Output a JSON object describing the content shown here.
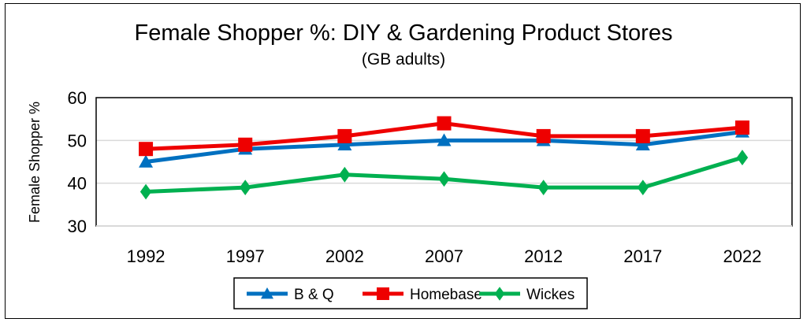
{
  "chart_data": {
    "type": "line",
    "title": "Female Shopper %: DIY & Gardening Product Stores",
    "subtitle": "(GB adults)",
    "xlabel": "",
    "ylabel": "Female Shopper %",
    "ylim": [
      30,
      60
    ],
    "yticks": [
      30,
      40,
      50,
      60
    ],
    "categories": [
      "1992",
      "1997",
      "2002",
      "2007",
      "2012",
      "2017",
      "2022"
    ],
    "grid": true,
    "legend": "bottom",
    "series": [
      {
        "name": "B & Q",
        "color": "#0070C0",
        "marker": "triangle",
        "values": [
          45,
          48,
          49,
          50,
          50,
          49,
          52
        ]
      },
      {
        "name": "Homebase",
        "color": "#EE0000",
        "marker": "square",
        "values": [
          48,
          49,
          51,
          54,
          51,
          51,
          53
        ]
      },
      {
        "name": "Wickes",
        "color": "#00B050",
        "marker": "diamond",
        "values": [
          38,
          39,
          42,
          41,
          39,
          39,
          46
        ]
      }
    ]
  }
}
